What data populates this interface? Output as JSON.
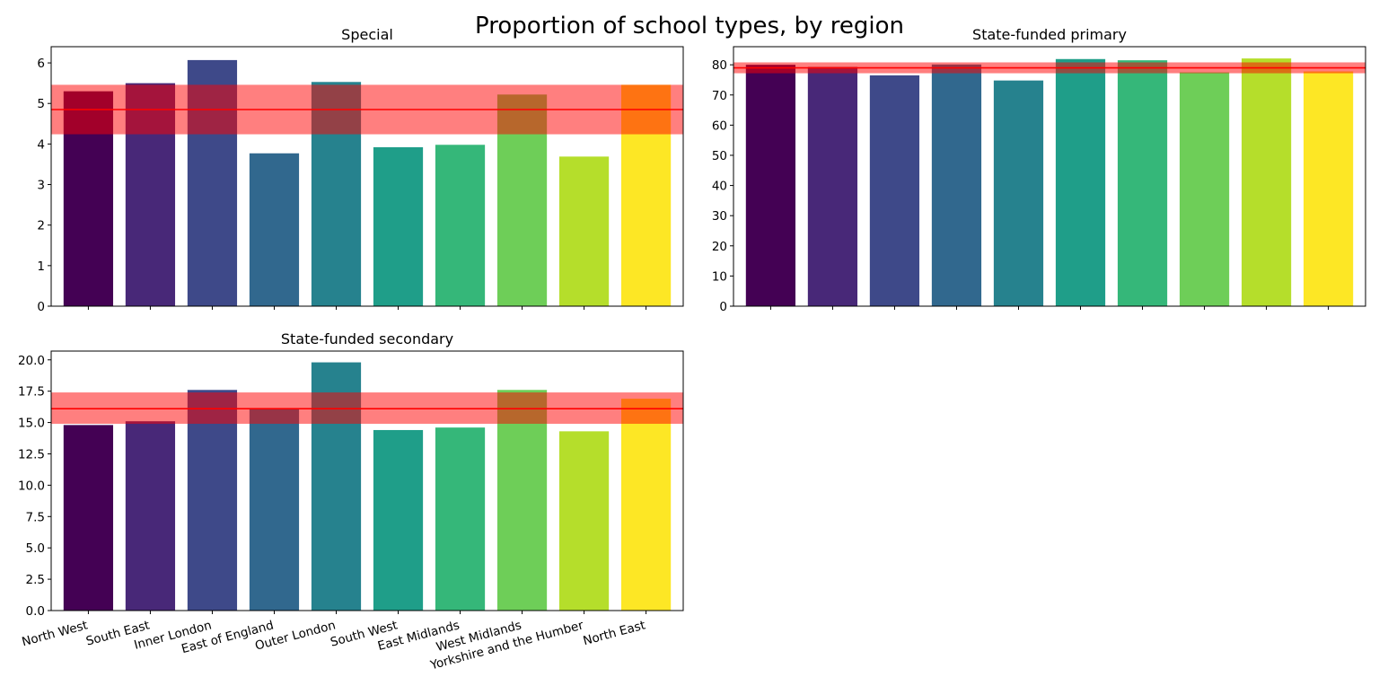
{
  "figure": {
    "title": "Proportion of school types, by region"
  },
  "chart_data": [
    {
      "type": "bar",
      "title": "Special",
      "categories": [
        "North West",
        "South East",
        "Inner London",
        "East of England",
        "Outer London",
        "South West",
        "East Midlands",
        "West Midlands",
        "Yorkshire and the Humber",
        "North East"
      ],
      "values": [
        5.3,
        5.5,
        6.07,
        3.77,
        5.53,
        3.92,
        3.98,
        5.22,
        3.69,
        5.46
      ],
      "mean": 4.85,
      "band": [
        4.24,
        5.46
      ],
      "ylim": [
        0,
        6.4
      ],
      "yticks": [
        0,
        1,
        2,
        3,
        4,
        5,
        6
      ],
      "ytick_labels": [
        "0",
        "1",
        "2",
        "3",
        "4",
        "5",
        "6"
      ],
      "show_xtick_labels": false
    },
    {
      "type": "bar",
      "title": "State-funded primary",
      "categories": [
        "North West",
        "South East",
        "Inner London",
        "East of England",
        "Outer London",
        "South West",
        "East Midlands",
        "West Midlands",
        "Yorkshire and the Humber",
        "North East"
      ],
      "values": [
        80.0,
        79.3,
        76.5,
        80.1,
        74.8,
        81.9,
        81.5,
        77.5,
        82.1,
        77.8
      ],
      "mean": 79.0,
      "band": [
        77.2,
        80.8
      ],
      "ylim": [
        0,
        86
      ],
      "yticks": [
        0,
        10,
        20,
        30,
        40,
        50,
        60,
        70,
        80
      ],
      "ytick_labels": [
        "0",
        "10",
        "20",
        "30",
        "40",
        "50",
        "60",
        "70",
        "80"
      ],
      "show_xtick_labels": false
    },
    {
      "type": "bar",
      "title": "State-funded secondary",
      "categories": [
        "North West",
        "South East",
        "Inner London",
        "East of England",
        "Outer London",
        "South West",
        "East Midlands",
        "West Midlands",
        "Yorkshire and the Humber",
        "North East"
      ],
      "values": [
        14.8,
        15.1,
        17.6,
        16.1,
        19.8,
        14.4,
        14.6,
        17.6,
        14.3,
        16.9
      ],
      "mean": 16.1,
      "band": [
        14.9,
        17.4
      ],
      "ylim": [
        0,
        20.7
      ],
      "yticks": [
        0,
        2.5,
        5,
        7.5,
        10,
        12.5,
        15,
        17.5,
        20
      ],
      "ytick_labels": [
        "0.0",
        "2.5",
        "5.0",
        "7.5",
        "10.0",
        "12.5",
        "15.0",
        "17.5",
        "20.0"
      ],
      "show_xtick_labels": true
    }
  ],
  "colors": {
    "bars": [
      "#440154",
      "#482878",
      "#3e4989",
      "#31688e",
      "#26828e",
      "#1f9e89",
      "#35b779",
      "#6ece58",
      "#b5de2b",
      "#fde725"
    ],
    "mean_line": "#ff0000",
    "band_fill": "#ff0000",
    "band_opacity": 0.5
  }
}
